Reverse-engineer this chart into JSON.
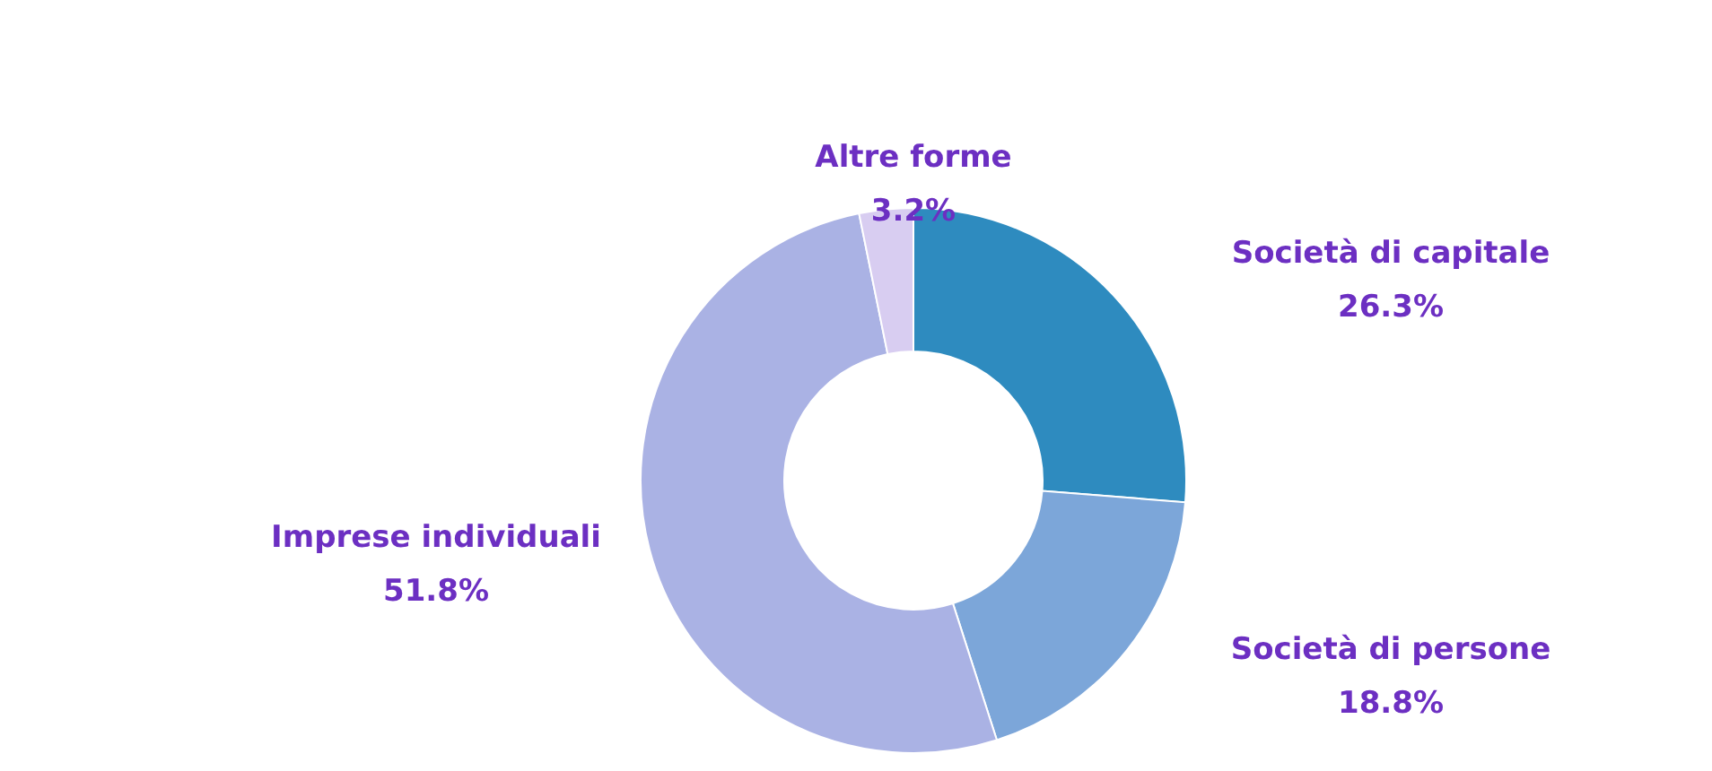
{
  "chart_data": {
    "type": "donut",
    "categories": [
      "Società di capitale",
      "Società di persone",
      "Imprese individuali",
      "Altre forme"
    ],
    "values": [
      26.3,
      18.8,
      51.8,
      3.2
    ],
    "colors": [
      "#2e8bbf",
      "#7ca6d9",
      "#aab2e4",
      "#d8cdf1"
    ],
    "value_labels": [
      "26.3%",
      "18.8%",
      "51.8%",
      "3.2%"
    ]
  }
}
